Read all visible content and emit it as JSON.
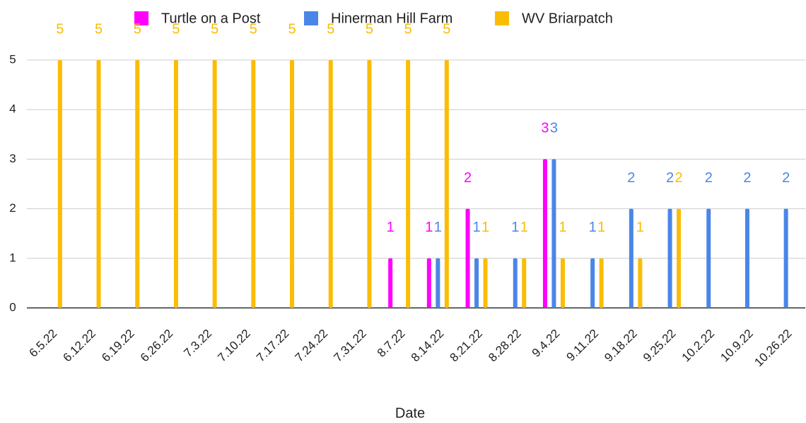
{
  "chart_data": {
    "type": "bar",
    "x_label": "Date",
    "categories": [
      "6.5.22",
      "6.12.22",
      "6.19.22",
      "6.26.22",
      "7.3.22",
      "7.10.22",
      "7.17.22",
      "7.24.22",
      "7.31.22",
      "8.7.22",
      "8.14.22",
      "8.21.22",
      "8.28.22",
      "9.4.22",
      "9.11.22",
      "9.18.22",
      "9.25.22",
      "10.2.22",
      "10.9.22",
      "10.26.22"
    ],
    "series": [
      {
        "name": "Turtle on a Post",
        "color": "#ff00ff",
        "values": [
          null,
          null,
          null,
          null,
          null,
          null,
          null,
          null,
          null,
          1,
          1,
          2,
          null,
          3,
          null,
          null,
          null,
          null,
          null,
          null
        ]
      },
      {
        "name": "Hinerman Hill Farm",
        "color": "#4a86e8",
        "values": [
          null,
          null,
          null,
          null,
          null,
          null,
          null,
          null,
          null,
          null,
          1,
          1,
          1,
          3,
          1,
          2,
          2,
          2,
          2,
          2
        ]
      },
      {
        "name": "WV Briarpatch",
        "color": "#fbbc04",
        "values": [
          5,
          5,
          5,
          5,
          5,
          5,
          5,
          5,
          5,
          5,
          5,
          1,
          1,
          1,
          1,
          1,
          2,
          null,
          null,
          null
        ]
      }
    ],
    "ylim": [
      0,
      5
    ],
    "yticks": [
      0,
      1,
      2,
      3,
      4,
      5
    ],
    "grid": true,
    "legend": "top"
  }
}
